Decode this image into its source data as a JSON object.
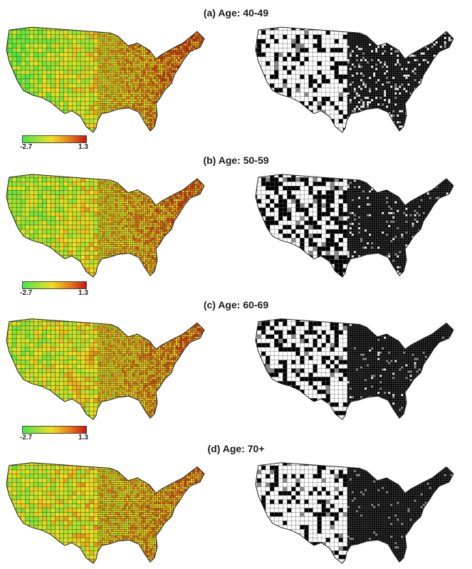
{
  "panels": [
    {
      "title": "(a) Age: 40-49",
      "mix": 0.72,
      "black_east": 0.85,
      "black_west": 0.3
    },
    {
      "title": "(b) Age: 50-59",
      "mix": 0.62,
      "black_east": 0.9,
      "black_west": 0.45
    },
    {
      "title": "(c) Age: 60-69",
      "mix": 0.52,
      "black_east": 0.93,
      "black_west": 0.35
    },
    {
      "title": "(d) Age: 70+",
      "mix": 0.46,
      "black_east": 0.95,
      "black_west": 0.25
    }
  ],
  "legend": {
    "min": "-2.7",
    "max": "1.3"
  },
  "colors": {
    "low": "#44e844",
    "mid": "#f0e020",
    "high": "#c81414",
    "outline": "#222222"
  }
}
